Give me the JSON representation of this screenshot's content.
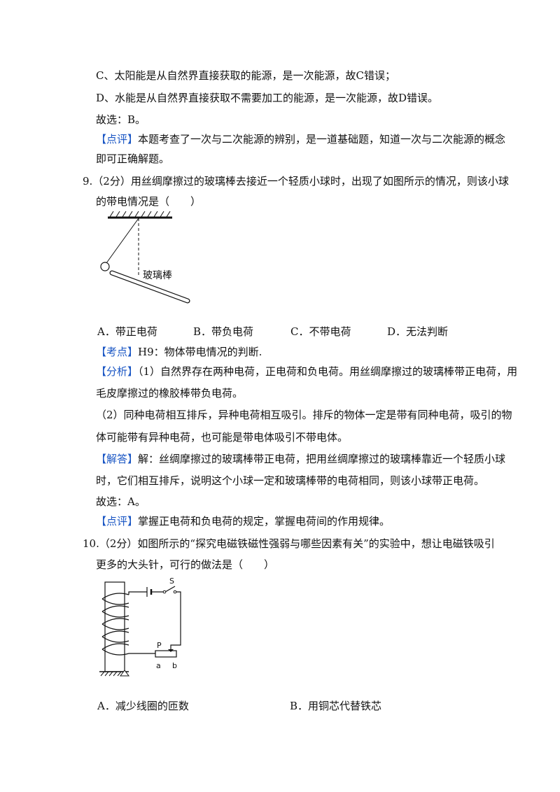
{
  "page": {
    "lines": [
      {
        "id": "l1",
        "text": "C、太阳能是从自然界直接获取的能源，是一次能源，故C错误；"
      },
      {
        "id": "l2",
        "text": "D、水能是从自然界直接获取不需要加工的能源，是一次能源，故D错误。"
      },
      {
        "id": "l3",
        "text": "故选：B。"
      },
      {
        "id": "l4",
        "tag": "【点评】",
        "text": "本题考查了一次与二次能源的辨别，是一道基础题，知道一次与二次能源的概念"
      },
      {
        "id": "l5",
        "text": "即可正确解题。"
      },
      {
        "id": "q9a",
        "text": "9.（2分）用丝绸摩擦过的玻璃棒去接近一个轻质小球时，出现了如图所示的情况，则该小球"
      },
      {
        "id": "q9b",
        "text": "的带电情况是（　　）"
      },
      {
        "id": "kd",
        "tag": "【考点】",
        "text": "H9：物体带电情况的判断."
      },
      {
        "id": "fx1",
        "tag": "【分析】",
        "text": "（1）自然界存在两种电荷，正电荷和负电荷。用丝绸摩擦过的玻璃棒带正电荷，用"
      },
      {
        "id": "fx2",
        "text": "毛皮摩擦过的橡胶棒带负电荷。"
      },
      {
        "id": "fx3",
        "text": "（2）同种电荷相互排斥，异种电荷相互吸引。排斥的物体一定是带有同种电荷，吸引的物"
      },
      {
        "id": "fx4",
        "text": "体可能带有异种电荷，也可能是带电体吸引不带电体。"
      },
      {
        "id": "jd1",
        "tag": "【解答】",
        "text": "解：丝绸摩擦过的玻璃棒带正电荷，把用丝绸摩擦过的玻璃棒靠近一个轻质小球"
      },
      {
        "id": "jd2",
        "text": "时，它们相互排斥，说明这个小球一定和玻璃棒带的电荷相同，则该小球带正电荷。"
      },
      {
        "id": "jd3",
        "text": "故选：A。"
      },
      {
        "id": "dp2",
        "tag": "【点评】",
        "text": "掌握正电荷和负电荷的规定，掌握电荷间的作用规律。"
      },
      {
        "id": "q10a",
        "text": "10.（2分）如图所示的“探究电磁铁磁性强弱与哪些因素有关”的实验中，想让电磁铁吸引"
      },
      {
        "id": "q10b",
        "text": "更多的大头针，可行的做法是（　　）"
      }
    ],
    "q9_options": [
      "A．带正电荷",
      "B．带负电荷",
      "C．不带电荷",
      "D．无法判断"
    ],
    "q10_options": [
      "A．减少线圈的匝数",
      "B．用铜芯代替铁芯"
    ],
    "fig9_label": "玻璃棒",
    "fig10_labels": {
      "switch": "S",
      "slider": "P",
      "end_a": "a",
      "end_b": "b"
    },
    "colors": {
      "tag": "#1a56c4",
      "text": "#111111"
    }
  }
}
